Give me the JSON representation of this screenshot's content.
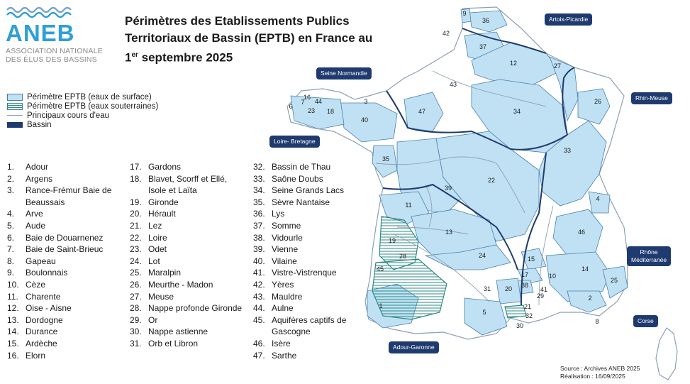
{
  "logo": {
    "name": "ANEB",
    "line1": "ASSOCIATION NATIONALE",
    "line2": "DES ÉLUS DES BASSINS",
    "color": "#2f9fd8"
  },
  "title": {
    "line1": "Périmètres des Etablissements Publics",
    "line2": "Territoriaux de Bassin (EPTB) en France au",
    "line3_num": "1",
    "line3_sup": "er",
    "line3_rest": " septembre 2025"
  },
  "legend": {
    "surface": "Périmètre EPTB (eaux de surface)",
    "ground": "Périmètre EPTB (eaux souterraines)",
    "rivers": "Principaux cours d'eau",
    "basin": "Bassin"
  },
  "colors": {
    "surface_fill": "#bfe1f3",
    "surface_edge": "#4a7fb0",
    "groundwater": "#2e8a86",
    "basin_border": "#1f3a6e",
    "river": "#8ca0b3"
  },
  "eptb_list": [
    {
      "n": "1.",
      "name": "Adour"
    },
    {
      "n": "2.",
      "name": "Argens"
    },
    {
      "n": "3.",
      "name": "Rance-Frémur Baie de Beaussais"
    },
    {
      "n": "4.",
      "name": "Arve"
    },
    {
      "n": "5.",
      "name": "Aude"
    },
    {
      "n": "6.",
      "name": "Baie de Douarnenez"
    },
    {
      "n": "7.",
      "name": "Baie de Saint-Brieuc"
    },
    {
      "n": "8.",
      "name": "Gapeau"
    },
    {
      "n": "9.",
      "name": "Boulonnais"
    },
    {
      "n": "10.",
      "name": "Cèze"
    },
    {
      "n": "11.",
      "name": "Charente"
    },
    {
      "n": "12.",
      "name": "Oise - Aisne"
    },
    {
      "n": "13.",
      "name": "Dordogne"
    },
    {
      "n": "14.",
      "name": "Durance"
    },
    {
      "n": "15.",
      "name": "Ardèche"
    },
    {
      "n": "16.",
      "name": "Elorn"
    },
    {
      "n": "17.",
      "name": "Gardons"
    },
    {
      "n": "18.",
      "name": "Blavet, Scorff et Ellé, Isole et Laïta"
    },
    {
      "n": "19.",
      "name": "Gironde"
    },
    {
      "n": "20.",
      "name": "Hérault"
    },
    {
      "n": "21.",
      "name": "Lez"
    },
    {
      "n": "22.",
      "name": "Loire"
    },
    {
      "n": "23.",
      "name": "Odet"
    },
    {
      "n": "24.",
      "name": "Lot"
    },
    {
      "n": "25.",
      "name": "Maralpin"
    },
    {
      "n": "26.",
      "name": "Meurthe - Madon"
    },
    {
      "n": "27.",
      "name": "Meuse"
    },
    {
      "n": "28.",
      "name": "Nappe profonde Gironde"
    },
    {
      "n": "29.",
      "name": "Or"
    },
    {
      "n": "30.",
      "name": "Nappe astienne"
    },
    {
      "n": "31.",
      "name": "Orb et Libron"
    },
    {
      "n": "32.",
      "name": "Bassin de Thau"
    },
    {
      "n": "33.",
      "name": "Saône Doubs"
    },
    {
      "n": "34.",
      "name": "Seine Grands Lacs"
    },
    {
      "n": "35.",
      "name": "Sèvre Nantaise"
    },
    {
      "n": "36.",
      "name": "Lys"
    },
    {
      "n": "37.",
      "name": "Somme"
    },
    {
      "n": "38.",
      "name": "Vidourle"
    },
    {
      "n": "39.",
      "name": "Vienne"
    },
    {
      "n": "40.",
      "name": "Vilaine"
    },
    {
      "n": "41.",
      "name": "Vistre-Vistrenque"
    },
    {
      "n": "42.",
      "name": "Yères"
    },
    {
      "n": "43.",
      "name": "Mauldre"
    },
    {
      "n": "44.",
      "name": "Aulne"
    },
    {
      "n": "45.",
      "name": "Aquifères captifs de Gascogne"
    },
    {
      "n": "46.",
      "name": "Isère"
    },
    {
      "n": "47.",
      "name": "Sarthe"
    }
  ],
  "basins": {
    "artois": "Artois-Picardie",
    "seine": "Seine Normandie",
    "rhin": "Rhin-Meuse",
    "loire": "Loire- Bretagne",
    "rhone_l1": "Rhône",
    "rhone_l2": "Méditerranée",
    "adour": "Adour-Garonne",
    "corse": "Corse"
  },
  "map_numbers": [
    "1",
    "2",
    "3",
    "4",
    "5",
    "6",
    "7",
    "8",
    "9",
    "10",
    "11",
    "12",
    "13",
    "14",
    "15",
    "16",
    "17",
    "18",
    "19",
    "20",
    "21",
    "22",
    "23",
    "24",
    "25",
    "26",
    "27",
    "28",
    "29",
    "30",
    "31",
    "32",
    "33",
    "34",
    "35",
    "36",
    "37",
    "38",
    "39",
    "40",
    "41",
    "42",
    "43",
    "44",
    "45",
    "46",
    "47"
  ],
  "source": {
    "line1": "Source : Archives ANEB 2025",
    "line2": "Réalisation : 16/09/2025"
  }
}
